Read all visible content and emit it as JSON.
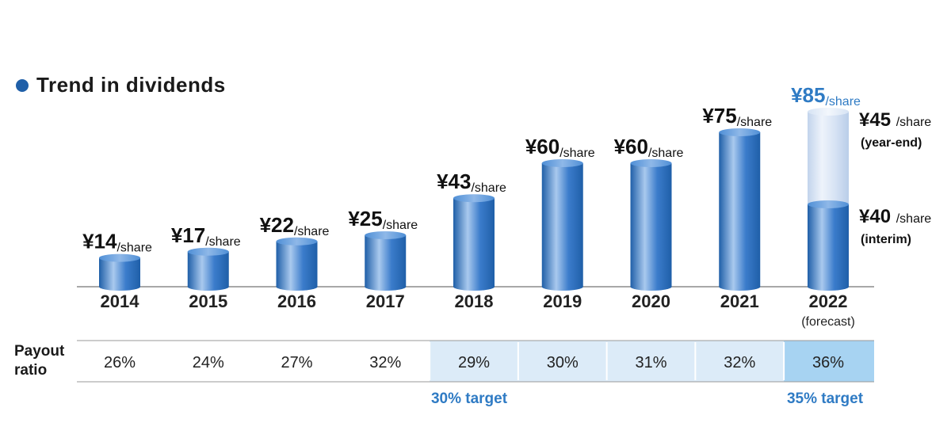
{
  "title": "Trend in dividends",
  "chart_data": {
    "type": "bar",
    "title": "Trend in dividends",
    "unit_prefix": "¥",
    "unit_suffix": "/share",
    "categories": [
      "2014",
      "2015",
      "2016",
      "2017",
      "2018",
      "2019",
      "2020",
      "2021",
      "2022"
    ],
    "category_notes": [
      "",
      "",
      "",
      "",
      "",
      "",
      "",
      "",
      "(forecast)"
    ],
    "values": [
      14,
      17,
      22,
      25,
      43,
      60,
      60,
      75,
      85
    ],
    "value_labels": [
      "¥14",
      "¥17",
      "¥22",
      "¥25",
      "¥43",
      "¥60",
      "¥60",
      "¥75",
      "¥85"
    ],
    "forecast_breakdown": {
      "interim": {
        "value": 40,
        "label": "¥40",
        "suffix": "/share",
        "note": "(interim)"
      },
      "year_end": {
        "value": 45,
        "label": "¥45",
        "suffix": "/share",
        "note": "(year-end)"
      }
    },
    "ylim": [
      0,
      100
    ],
    "colors": {
      "bar": "#2c6fbd",
      "bar_light": "#a9c7ea",
      "forecast_light": "#c9d9ef",
      "accent_text": "#2f7bc4"
    }
  },
  "payout": {
    "label_line1": "Payout",
    "label_line2": "ratio",
    "values": [
      "26%",
      "24%",
      "27%",
      "32%",
      "29%",
      "30%",
      "31%",
      "32%",
      "36%"
    ],
    "highlight_30": {
      "from_index": 4,
      "to_index": 7,
      "color": "#dcebf8",
      "target_label": "30% target"
    },
    "highlight_35": {
      "index": 8,
      "color": "#a7d3f2",
      "target_label": "35% target"
    }
  }
}
